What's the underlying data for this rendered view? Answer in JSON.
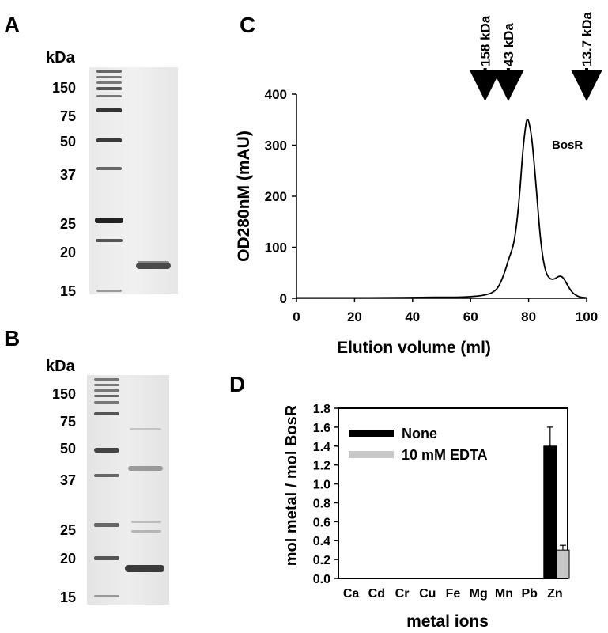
{
  "panels": {
    "A": {
      "letter": "A",
      "unit": "kDa",
      "markers": [
        "150",
        "75",
        "50",
        "37",
        "25",
        "20",
        "15"
      ]
    },
    "B": {
      "letter": "B",
      "unit": "kDa",
      "markers": [
        "150",
        "75",
        "50",
        "37",
        "25",
        "20",
        "15"
      ]
    },
    "C": {
      "letter": "C"
    },
    "D": {
      "letter": "D"
    }
  },
  "chart_data": [
    {
      "panel": "C",
      "type": "line",
      "xlabel": "Elution volume (ml)",
      "ylabel": "OD280nM (mAU)",
      "xlim": [
        0,
        100
      ],
      "ylim": [
        0,
        400
      ],
      "xticks": [
        0,
        20,
        40,
        60,
        80,
        100
      ],
      "yticks": [
        0,
        100,
        200,
        300,
        400
      ],
      "series": [
        {
          "name": "BosR",
          "x": [
            0,
            10,
            20,
            30,
            40,
            45,
            50,
            55,
            60,
            65,
            68,
            70,
            72,
            73,
            74,
            75,
            76,
            77,
            78,
            79,
            79.5,
            80,
            81,
            82,
            83,
            84,
            85,
            86,
            87,
            88,
            89,
            90,
            91,
            92,
            93,
            94,
            95,
            96,
            97,
            98,
            100
          ],
          "y": [
            1,
            1,
            1,
            1,
            1.5,
            2,
            2,
            2,
            3,
            6,
            12,
            25,
            55,
            75,
            90,
            110,
            150,
            210,
            290,
            340,
            352,
            348,
            320,
            260,
            190,
            120,
            75,
            50,
            40,
            37,
            38,
            42,
            44,
            40,
            30,
            20,
            12,
            7,
            4,
            2,
            1
          ]
        }
      ],
      "annotations": {
        "peak_label": "BosR",
        "markers": [
          {
            "label": "158 kDa",
            "x": 65
          },
          {
            "label": "43 kDa",
            "x": 73
          },
          {
            "label": "13.7 kDa",
            "x": 100
          }
        ]
      }
    },
    {
      "panel": "D",
      "type": "bar",
      "xlabel": "metal ions",
      "ylabel": "mol metal / mol BosR",
      "ylim": [
        0,
        1.8
      ],
      "yticks": [
        "0.0",
        "0.2",
        "0.4",
        "0.6",
        "0.8",
        "1.0",
        "1.2",
        "1.4",
        "1.6",
        "1.8"
      ],
      "categories": [
        "Ca",
        "Cd",
        "Cr",
        "Cu",
        "Fe",
        "Mg",
        "Mn",
        "Pb",
        "Zn"
      ],
      "series": [
        {
          "name": "None",
          "color": "#000000",
          "values": [
            0,
            0,
            0,
            0,
            0,
            0,
            0,
            0,
            1.4
          ],
          "errors": [
            0,
            0,
            0,
            0,
            0,
            0,
            0,
            0,
            0.2
          ]
        },
        {
          "name": "10 mM EDTA",
          "color": "#c8c8c8",
          "values": [
            0,
            0,
            0,
            0,
            0,
            0,
            0,
            0,
            0.3
          ],
          "errors": [
            0,
            0,
            0,
            0,
            0,
            0,
            0,
            0,
            0.05
          ]
        }
      ],
      "legend_position": "top-left"
    }
  ]
}
